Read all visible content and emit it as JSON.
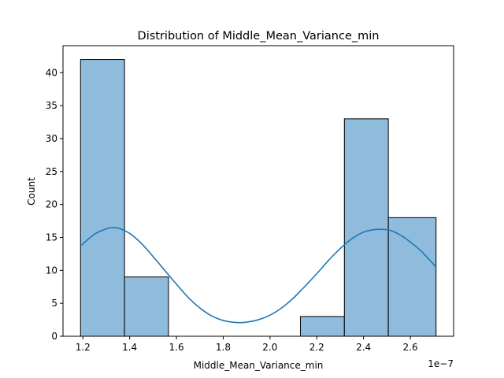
{
  "chart_data": {
    "type": "bar",
    "subtype": "histogram_with_kde",
    "title": "Distribution of Middle_Mean_Variance_min",
    "xlabel": "Middle_Mean_Variance_min",
    "ylabel": "Count",
    "x_offset_text": "1e−7",
    "x_scale_factor": 1e-07,
    "xlim": [
      1.115,
      2.785
    ],
    "ylim": [
      0,
      44.1
    ],
    "x_ticks": [
      1.2,
      1.4,
      1.6,
      1.8,
      2.0,
      2.2,
      2.4,
      2.6
    ],
    "x_tick_labels": [
      "1.2",
      "1.4",
      "1.6",
      "1.8",
      "2.0",
      "2.2",
      "2.4",
      "2.6"
    ],
    "y_ticks": [
      0,
      5,
      10,
      15,
      20,
      25,
      30,
      35,
      40
    ],
    "y_tick_labels": [
      "0",
      "5",
      "10",
      "15",
      "20",
      "25",
      "30",
      "35",
      "40"
    ],
    "bins": [
      {
        "x0": 1.19,
        "x1": 1.378,
        "count": 42
      },
      {
        "x0": 1.378,
        "x1": 1.566,
        "count": 9
      },
      {
        "x0": 1.566,
        "x1": 1.754,
        "count": 0
      },
      {
        "x0": 1.754,
        "x1": 1.942,
        "count": 0
      },
      {
        "x0": 1.942,
        "x1": 2.13,
        "count": 0
      },
      {
        "x0": 2.13,
        "x1": 2.318,
        "count": 3
      },
      {
        "x0": 2.318,
        "x1": 2.506,
        "count": 33
      },
      {
        "x0": 2.506,
        "x1": 2.71,
        "count": 18
      }
    ],
    "kde": {
      "x": [
        1.19,
        1.25,
        1.3,
        1.33,
        1.36,
        1.4,
        1.45,
        1.5,
        1.55,
        1.6,
        1.65,
        1.7,
        1.75,
        1.8,
        1.85,
        1.89,
        1.95,
        2.0,
        2.05,
        2.1,
        2.15,
        2.2,
        2.25,
        2.3,
        2.35,
        2.4,
        2.45,
        2.49,
        2.52,
        2.56,
        2.6,
        2.65,
        2.71
      ],
      "y": [
        13.7,
        15.5,
        16.3,
        16.5,
        16.3,
        15.6,
        14.1,
        12.1,
        10.0,
        7.9,
        5.9,
        4.3,
        3.1,
        2.4,
        2.1,
        2.1,
        2.5,
        3.2,
        4.3,
        5.8,
        7.6,
        9.5,
        11.5,
        13.3,
        14.8,
        15.8,
        16.2,
        16.2,
        16.0,
        15.3,
        14.3,
        12.8,
        10.5
      ]
    },
    "bar_color": "#8fbcdd",
    "bar_edge_color": "#000000",
    "kde_color": "#1f77b4",
    "grid": false,
    "legend": "none"
  }
}
